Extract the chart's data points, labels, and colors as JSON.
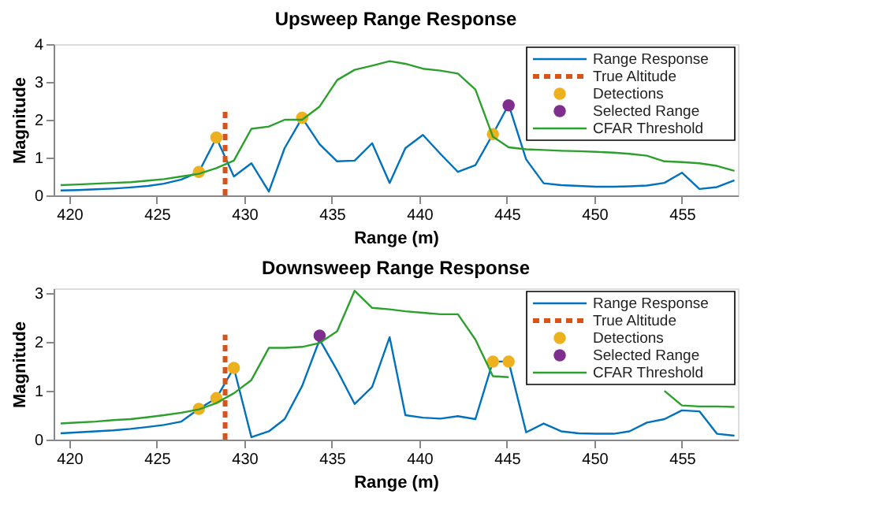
{
  "chart_data": [
    {
      "type": "line",
      "title": "Upsweep Range Response",
      "xlabel": "Range (m)",
      "ylabel": "Magnitude",
      "xlim": [
        419.1,
        458.2
      ],
      "xticks": [
        420,
        425,
        430,
        435,
        440,
        445,
        450,
        455
      ],
      "ylim": [
        0,
        4
      ],
      "yticks": [
        0,
        1,
        2,
        3,
        4
      ],
      "grid": false,
      "legend": "top right",
      "series": [
        {
          "name": "Range Response",
          "type": "line",
          "color": "#0072bd",
          "x": [
            419.5,
            420.5,
            421.5,
            422.5,
            423.5,
            424.5,
            425.4,
            426.4,
            427.4,
            428.4,
            429.4,
            430.4,
            431.4,
            432.3,
            433.3,
            434.3,
            435.3,
            436.3,
            437.3,
            438.3,
            439.2,
            440.2,
            441.2,
            442.2,
            443.2,
            444.2,
            445.1,
            446.1,
            447.1,
            448.1,
            449.1,
            450.1,
            451.1,
            452.0,
            453.0,
            454.0,
            455.0,
            456.0,
            457.0,
            458.0
          ],
          "values": [
            0.13,
            0.14,
            0.16,
            0.18,
            0.21,
            0.25,
            0.31,
            0.42,
            0.62,
            1.52,
            0.5,
            0.85,
            0.1,
            1.25,
            2.05,
            1.35,
            0.9,
            0.92,
            1.38,
            0.33,
            1.25,
            1.6,
            1.1,
            0.62,
            0.8,
            1.62,
            2.4,
            0.95,
            0.32,
            0.27,
            0.25,
            0.23,
            0.23,
            0.24,
            0.26,
            0.33,
            0.6,
            0.17,
            0.22,
            0.4
          ]
        },
        {
          "name": "True Altitude",
          "type": "line",
          "line_style": "dashed",
          "color": "#d95319",
          "x": [
            428.9,
            428.9
          ],
          "values": [
            0,
            2.3
          ]
        },
        {
          "name": "Detections",
          "type": "scatter",
          "marker": "circle",
          "color": "#edb120",
          "x": [
            427.4,
            428.4,
            433.3,
            444.2
          ],
          "values": [
            0.62,
            1.53,
            2.05,
            1.62
          ]
        },
        {
          "name": "Selected Range",
          "type": "scatter",
          "marker": "circle",
          "color": "#7e2f8e",
          "x": [
            445.1
          ],
          "values": [
            2.38
          ]
        },
        {
          "name": "CFAR Threshold",
          "type": "line",
          "color": "#2ca02c",
          "x": [
            419.5,
            420.5,
            421.5,
            422.5,
            423.5,
            424.5,
            425.4,
            426.4,
            427.4,
            428.4,
            429.4,
            430.4,
            431.4,
            432.3,
            433.3,
            434.3,
            435.3,
            436.3,
            437.3,
            438.3,
            439.2,
            440.2,
            441.2,
            442.2,
            443.2,
            444.2,
            445.1,
            446.1,
            447.1,
            448.1,
            449.1,
            450.1,
            451.1,
            452.0,
            453.0,
            454.0,
            455.0,
            456.0,
            457.0,
            458.0
          ],
          "values": [
            0.27,
            0.29,
            0.31,
            0.33,
            0.35,
            0.39,
            0.43,
            0.5,
            0.57,
            0.72,
            0.92,
            1.76,
            1.82,
            2.0,
            2.0,
            2.35,
            3.05,
            3.32,
            3.43,
            3.55,
            3.48,
            3.35,
            3.3,
            3.22,
            2.8,
            1.55,
            1.27,
            1.22,
            1.2,
            1.18,
            1.17,
            1.15,
            1.13,
            1.1,
            1.05,
            0.9,
            0.88,
            0.85,
            0.78,
            0.65
          ]
        }
      ]
    },
    {
      "type": "line",
      "title": "Downsweep Range Response",
      "xlabel": "Range (m)",
      "ylabel": "Magnitude",
      "xlim": [
        419.1,
        458.2
      ],
      "xticks": [
        420,
        425,
        430,
        435,
        440,
        445,
        450,
        455
      ],
      "ylim": [
        0,
        3.1
      ],
      "yticks": [
        0,
        1,
        2,
        3
      ],
      "grid": false,
      "legend": "top right",
      "series": [
        {
          "name": "Range Response",
          "type": "line",
          "color": "#0072bd",
          "x": [
            419.5,
            420.5,
            421.5,
            422.5,
            423.5,
            424.5,
            425.4,
            426.4,
            427.4,
            428.4,
            429.4,
            430.4,
            431.4,
            432.3,
            433.3,
            434.3,
            435.3,
            436.3,
            437.3,
            438.3,
            439.2,
            440.2,
            441.2,
            442.2,
            443.2,
            444.2,
            445.1,
            446.1,
            447.1,
            448.1,
            449.1,
            450.1,
            451.1,
            452.0,
            453.0,
            454.0,
            455.0,
            456.0,
            457.0,
            458.0
          ],
          "values": [
            0.13,
            0.15,
            0.17,
            0.19,
            0.22,
            0.26,
            0.3,
            0.37,
            0.63,
            0.85,
            1.47,
            0.05,
            0.17,
            0.42,
            1.1,
            2.05,
            1.42,
            0.73,
            1.08,
            2.1,
            0.5,
            0.45,
            0.43,
            0.48,
            0.42,
            1.6,
            1.6,
            0.15,
            0.33,
            0.17,
            0.13,
            0.12,
            0.12,
            0.17,
            0.35,
            0.42,
            0.6,
            0.58,
            0.12,
            0.08
          ]
        },
        {
          "name": "True Altitude",
          "type": "line",
          "line_style": "dashed",
          "color": "#d95319",
          "x": [
            428.9,
            428.9
          ],
          "values": [
            0,
            2.15
          ]
        },
        {
          "name": "Detections",
          "type": "scatter",
          "marker": "circle",
          "color": "#edb120",
          "x": [
            427.4,
            428.4,
            429.4,
            444.2,
            445.1
          ],
          "values": [
            0.63,
            0.85,
            1.47,
            1.6,
            1.6
          ]
        },
        {
          "name": "Selected Range",
          "type": "scatter",
          "marker": "circle",
          "color": "#7e2f8e",
          "x": [
            434.3
          ],
          "values": [
            2.13
          ]
        },
        {
          "name": "CFAR Threshold",
          "type": "line",
          "color": "#2ca02c",
          "x": [
            419.5,
            420.5,
            421.5,
            422.5,
            423.5,
            424.5,
            425.4,
            426.4,
            427.4,
            428.4,
            429.4,
            430.4,
            431.4,
            432.3,
            433.3,
            434.3,
            435.3,
            436.3,
            437.3,
            438.3,
            439.2,
            440.2,
            441.2,
            442.2,
            443.2,
            444.2,
            445.1,
            446.1,
            447.1,
            448.1,
            449.1,
            450.1,
            451.1,
            452.0,
            453.0,
            454.0,
            455.0,
            456.0,
            457.0,
            458.0
          ],
          "values": [
            0.33,
            0.35,
            0.37,
            0.4,
            0.42,
            0.46,
            0.5,
            0.55,
            0.62,
            0.75,
            0.95,
            1.22,
            1.88,
            1.88,
            1.9,
            1.98,
            2.22,
            3.05,
            2.7,
            2.67,
            2.63,
            2.6,
            2.57,
            2.57,
            2.05,
            1.3,
            1.28,
            null,
            null,
            null,
            null,
            null,
            null,
            null,
            null,
            1.0,
            0.7,
            0.68,
            0.68,
            0.67
          ]
        }
      ]
    }
  ]
}
